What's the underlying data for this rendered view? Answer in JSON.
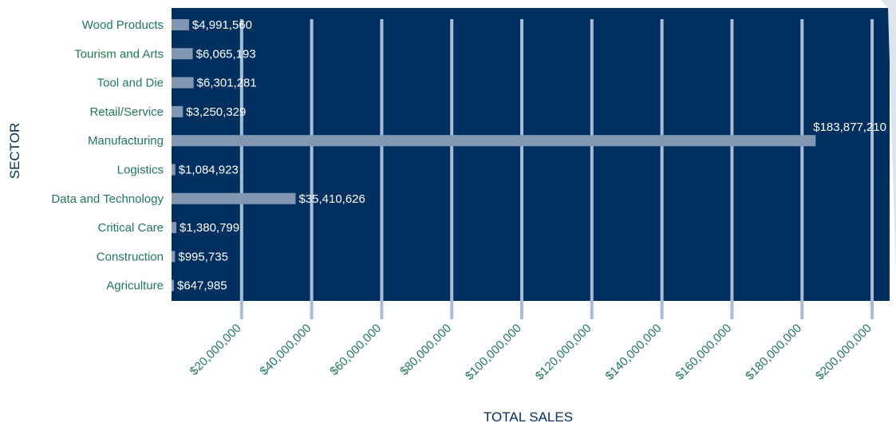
{
  "chart_data": {
    "type": "bar",
    "orientation": "horizontal",
    "title": "",
    "xlabel": "TOTAL SALES",
    "ylabel": "SECTOR",
    "xlim": [
      0,
      205000000
    ],
    "x_ticks": [
      20000000,
      40000000,
      60000000,
      80000000,
      100000000,
      120000000,
      140000000,
      160000000,
      180000000,
      200000000
    ],
    "x_tick_labels": [
      "$20,000,000",
      "$40,000,000",
      "$60,000,000",
      "$80,000,000",
      "$100,000,000",
      "$120,000,000",
      "$140,000,000",
      "$160,000,000",
      "$180,000,000",
      "$200,000,000"
    ],
    "grid": true,
    "categories": [
      "Wood Products",
      "Tourism and Arts",
      "Tool and Die",
      "Retail/Service",
      "Manufacturing",
      "Logistics",
      "Data and Technology",
      "Critical Care",
      "Construction",
      "Agriculture"
    ],
    "values": [
      4991560,
      6065193,
      6301281,
      3250329,
      183877210,
      1084923,
      35410626,
      1380799,
      995735,
      647985
    ],
    "value_labels": [
      "$4,991,560",
      "$6,065,193",
      "$6,301,281",
      "$3,250,329",
      "$183,877,210",
      "$1,084,923",
      "$35,410,626",
      "$1,380,799",
      "$995,735",
      "$647,985"
    ],
    "colors": {
      "plot_background": "#00305f",
      "bar": "#8298b2",
      "grid": "#a9bdd6",
      "category_text": "#1f7a53",
      "tick_text": "#1f7a53",
      "axis_title_text": "#00305f",
      "value_text": "#ffffff"
    }
  }
}
